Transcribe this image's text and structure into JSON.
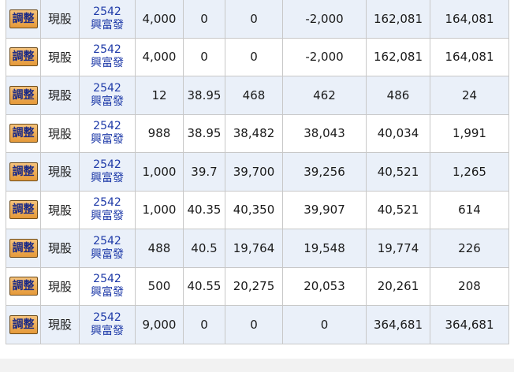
{
  "rows": [
    {
      "btn": "調整",
      "type": "現股",
      "code": "2542",
      "name": "興富發",
      "qty": "4,000",
      "price": "0",
      "cost": "0",
      "balance": "-2,000",
      "market": "162,081",
      "pl": "164,081"
    },
    {
      "btn": "調整",
      "type": "現股",
      "code": "2542",
      "name": "興富發",
      "qty": "4,000",
      "price": "0",
      "cost": "0",
      "balance": "-2,000",
      "market": "162,081",
      "pl": "164,081"
    },
    {
      "btn": "調整",
      "type": "現股",
      "code": "2542",
      "name": "興富發",
      "qty": "12",
      "price": "38.95",
      "cost": "468",
      "balance": "462",
      "market": "486",
      "pl": "24"
    },
    {
      "btn": "調整",
      "type": "現股",
      "code": "2542",
      "name": "興富發",
      "qty": "988",
      "price": "38.95",
      "cost": "38,482",
      "balance": "38,043",
      "market": "40,034",
      "pl": "1,991"
    },
    {
      "btn": "調整",
      "type": "現股",
      "code": "2542",
      "name": "興富發",
      "qty": "1,000",
      "price": "39.7",
      "cost": "39,700",
      "balance": "39,256",
      "market": "40,521",
      "pl": "1,265"
    },
    {
      "btn": "調整",
      "type": "現股",
      "code": "2542",
      "name": "興富發",
      "qty": "1,000",
      "price": "40.35",
      "cost": "40,350",
      "balance": "39,907",
      "market": "40,521",
      "pl": "614"
    },
    {
      "btn": "調整",
      "type": "現股",
      "code": "2542",
      "name": "興富發",
      "qty": "488",
      "price": "40.5",
      "cost": "19,764",
      "balance": "19,548",
      "market": "19,774",
      "pl": "226"
    },
    {
      "btn": "調整",
      "type": "現股",
      "code": "2542",
      "name": "興富發",
      "qty": "500",
      "price": "40.55",
      "cost": "20,275",
      "balance": "20,053",
      "market": "20,261",
      "pl": "208"
    },
    {
      "btn": "調整",
      "type": "現股",
      "code": "2542",
      "name": "興富發",
      "qty": "9,000",
      "price": "0",
      "cost": "0",
      "balance": "0",
      "market": "364,681",
      "pl": "364,681"
    }
  ],
  "colors": {
    "profit": "#d4252b",
    "link": "#1e3aa8",
    "row_alt": "#eaf0f9",
    "button": "#e59a3a"
  }
}
